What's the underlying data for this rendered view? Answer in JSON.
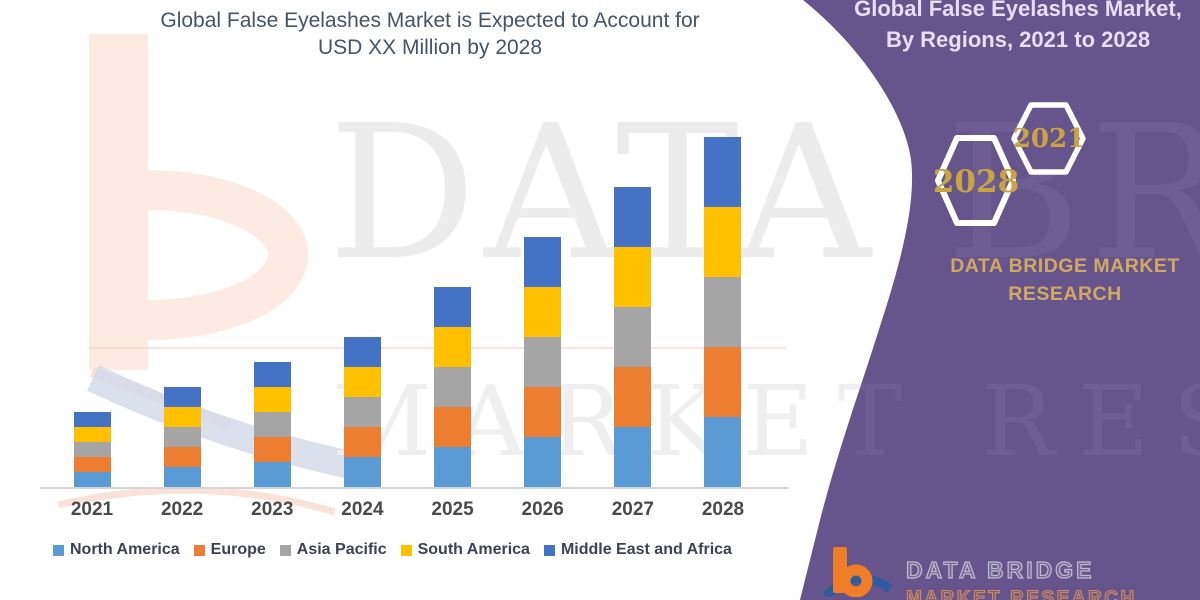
{
  "chart": {
    "title_line1": "Global False Eyelashes Market is Expected to Account for",
    "title_line2": "USD XX Million by 2028"
  },
  "chart_data": {
    "type": "bar",
    "stacked": true,
    "title": "Global False Eyelashes Market is Expected to Account for USD XX Million by 2028",
    "categories": [
      "2021",
      "2022",
      "2023",
      "2024",
      "2025",
      "2026",
      "2027",
      "2028"
    ],
    "series": [
      {
        "name": "North America",
        "color": "#5B9BD5",
        "values": [
          15,
          20,
          25,
          30,
          40,
          50,
          60,
          70
        ]
      },
      {
        "name": "Europe",
        "color": "#ED7D31",
        "values": [
          15,
          20,
          25,
          30,
          40,
          50,
          60,
          70
        ]
      },
      {
        "name": "Asia Pacific",
        "color": "#A5A5A5",
        "values": [
          15,
          20,
          25,
          30,
          40,
          50,
          60,
          70
        ]
      },
      {
        "name": "South America",
        "color": "#FFC000",
        "values": [
          15,
          20,
          25,
          30,
          40,
          50,
          60,
          70
        ]
      },
      {
        "name": "Middle East and Africa",
        "color": "#4472C4",
        "values": [
          15,
          20,
          25,
          30,
          40,
          50,
          60,
          70
        ]
      }
    ],
    "xlabel": "",
    "ylabel": "",
    "y_axis_visible": false,
    "grid": false,
    "legend_position": "bottom",
    "values_note": "Numeric values are masked in the source chart ('USD XX Million'); series values are relative units estimated from bar pixel heights (every region segment is equal within a year)."
  },
  "sidebar": {
    "title_line1": "Global False Eyelashes Market,",
    "title_line2": "By Regions, 2021 to 2028",
    "hex_back_label": "2028",
    "hex_front_label": "2021",
    "brand_line1": "DATA BRIDGE MARKET",
    "brand_line2": "RESEARCH",
    "panel_color": "#66548D",
    "accent_gold": "#C9A43F"
  },
  "watermark": {
    "band1": "DATA BRIDGE",
    "band2": "MARKET RESEARCH"
  },
  "footer": {
    "brand_line1": "DATA BRIDGE",
    "brand_line2": "MARKET RESEARCH"
  }
}
